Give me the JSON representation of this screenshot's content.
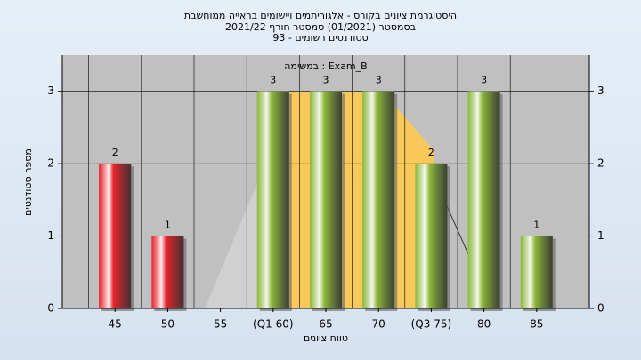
{
  "chart_data": {
    "type": "bar",
    "title": [
      "היסטוגרמת ציונים בקורס - אלגוריתמים ויישומים בראייה ממוחשבת",
      "בסמסטר  (01/2021)  סמסטר חורף 2021/22",
      "סטודנטים רשומים - 93"
    ],
    "annotation": "במשימה : Exam_B",
    "x_label": "טווח ציונים",
    "y_label": "מספר סטודנטים",
    "categories": [
      "45",
      "50",
      "55",
      "(Q1 60)",
      "65",
      "70",
      "(Q3 75)",
      "80",
      "85"
    ],
    "values": [
      2,
      1,
      0,
      3,
      3,
      3,
      2,
      3,
      1
    ],
    "colors": [
      "#e8242c",
      "#e8242c",
      "#8db83a",
      "#8db83a",
      "#8db83a",
      "#8db83a",
      "#8db83a",
      "#8db83a",
      "#8db83a"
    ],
    "ylim": [
      0,
      3.5
    ],
    "yticks": [
      0,
      1,
      2,
      3
    ],
    "y2lim": [
      0,
      3.5
    ],
    "y2ticks": [
      0,
      1,
      2,
      3
    ],
    "grid": true
  }
}
